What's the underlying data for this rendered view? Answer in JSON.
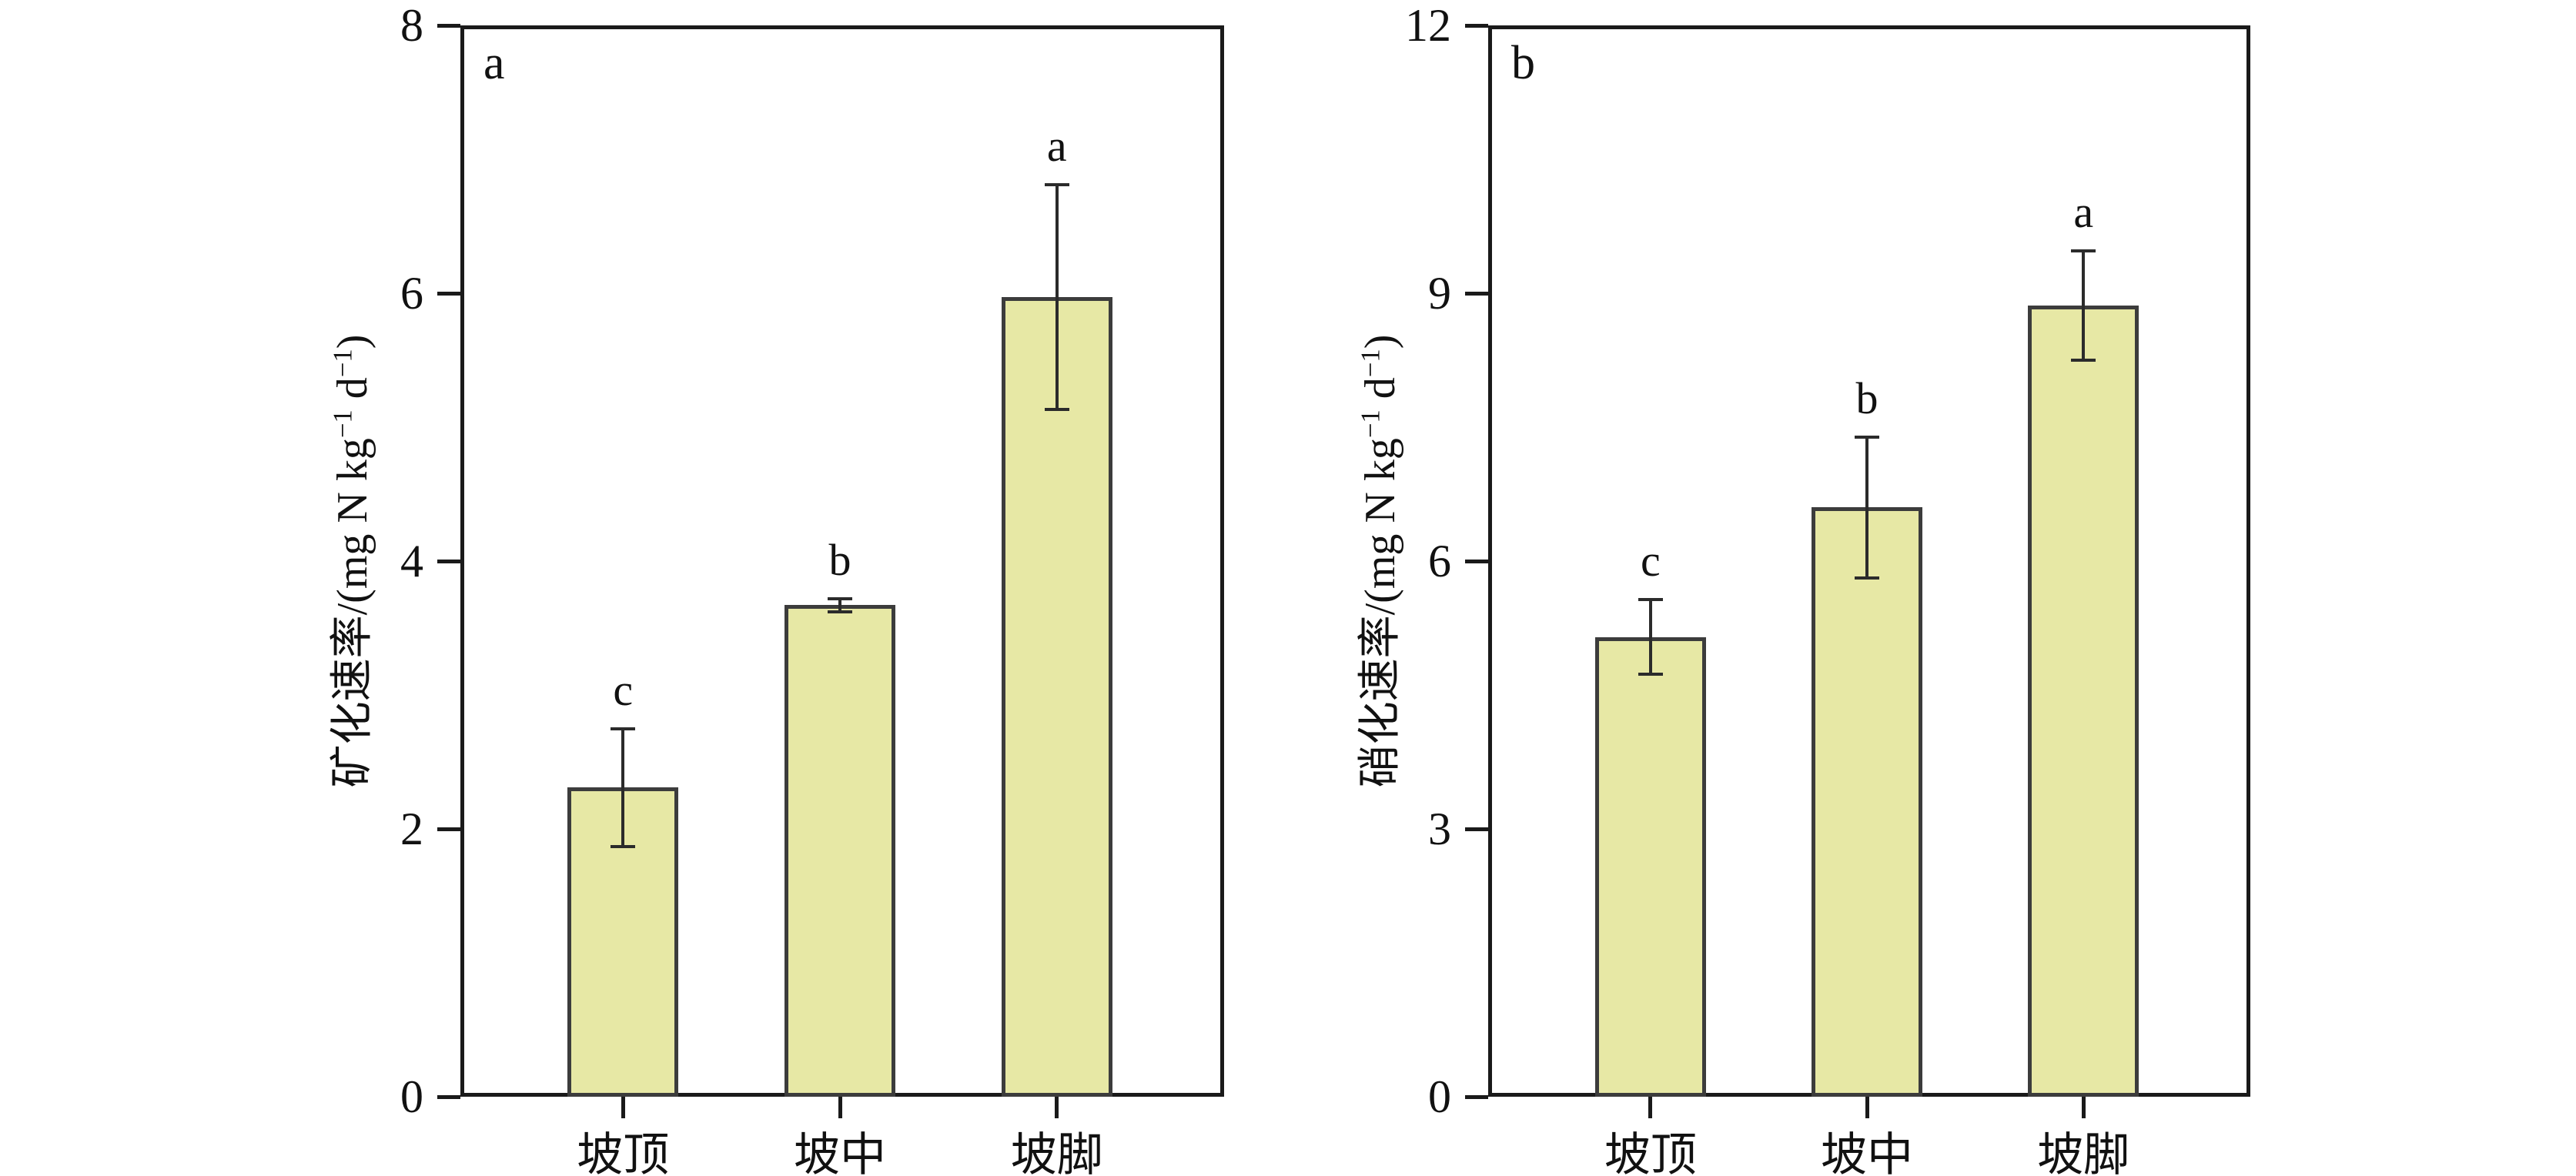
{
  "figure": {
    "background": "#ffffff",
    "colors": {
      "bar_fill": "#e7e8a5",
      "bar_border": "#3c3c3c",
      "axis": "#1a1a1a",
      "error_bar": "#2b2b2b",
      "text": "#111111"
    }
  },
  "chart_data": [
    {
      "type": "bar",
      "panel_label": "a",
      "title": "",
      "xlabel": "",
      "ylabel_plain": "矿化速率/(mg N kg−1 d−1)",
      "ylabel_segments": [
        {
          "t": "矿化速率/(mg N kg"
        },
        {
          "t": "−1",
          "sup": true
        },
        {
          "t": " d"
        },
        {
          "t": "−1",
          "sup": true
        },
        {
          "t": ")"
        }
      ],
      "categories": [
        "坡顶",
        "坡中",
        "坡脚"
      ],
      "values": [
        2.31,
        3.67,
        5.97
      ],
      "errors": [
        0.44,
        0.05,
        0.84
      ],
      "sig_letters": [
        "c",
        "b",
        "a"
      ],
      "ylim": [
        0,
        8
      ],
      "yticks": [
        0,
        2,
        4,
        6,
        8
      ],
      "grid": false,
      "legend": "none"
    },
    {
      "type": "bar",
      "panel_label": "b",
      "title": "",
      "xlabel": "",
      "ylabel_plain": "硝化速率/(mg N kg−1 d−1)",
      "ylabel_segments": [
        {
          "t": "硝化速率/(mg N kg"
        },
        {
          "t": "−1",
          "sup": true
        },
        {
          "t": " d"
        },
        {
          "t": "−1",
          "sup": true
        },
        {
          "t": ")"
        }
      ],
      "categories": [
        "坡顶",
        "坡中",
        "坡脚"
      ],
      "values": [
        5.15,
        6.6,
        8.86
      ],
      "errors": [
        0.42,
        0.79,
        0.61
      ],
      "sig_letters": [
        "c",
        "b",
        "a"
      ],
      "ylim": [
        0,
        12
      ],
      "yticks": [
        0,
        3,
        6,
        9,
        12
      ],
      "grid": false,
      "legend": "none"
    }
  ]
}
